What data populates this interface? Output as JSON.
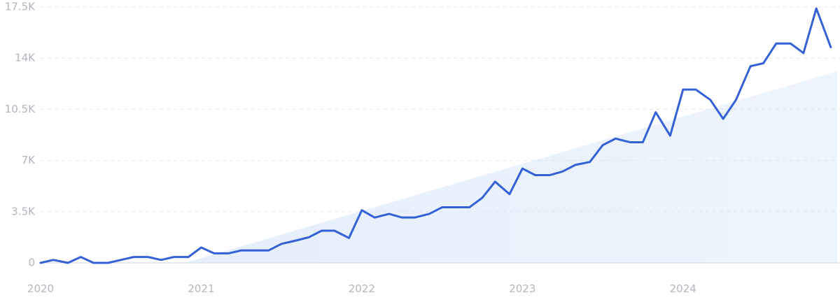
{
  "chart_data": {
    "type": "line",
    "title": "",
    "xlabel": "",
    "ylabel": "",
    "x_ticks": [
      "2020",
      "2021",
      "2022",
      "2023",
      "2024"
    ],
    "x_tick_values": [
      2020,
      2021,
      2022,
      2023,
      2024
    ],
    "y_ticks": [
      "0",
      "3.5K",
      "7K",
      "10.5K",
      "14K",
      "17.5K"
    ],
    "y_tick_values": [
      0,
      3500,
      7000,
      10500,
      14000,
      17500
    ],
    "ylim": [
      0,
      17500
    ],
    "xlim": [
      2020,
      2024.96
    ],
    "grid": true,
    "line_color": "#3461d6",
    "trend_fill_color": "#cfe1f8",
    "trend": {
      "x": [
        2020.9,
        2024.96
      ],
      "y": [
        0,
        13100
      ]
    },
    "series": [
      {
        "x": [
          2020.0,
          2020.08,
          2020.17,
          2020.25,
          2020.33,
          2020.42,
          2020.5,
          2020.58,
          2020.67,
          2020.75,
          2020.83,
          2020.92,
          2021.0,
          2021.08,
          2021.17,
          2021.25,
          2021.33,
          2021.42,
          2021.5,
          2021.58,
          2021.67,
          2021.75,
          2021.83,
          2021.92,
          2022.0,
          2022.08,
          2022.17,
          2022.25,
          2022.33,
          2022.42,
          2022.5,
          2022.58,
          2022.67,
          2022.75,
          2022.83,
          2022.92,
          2023.0,
          2023.08,
          2023.17,
          2023.25,
          2023.33,
          2023.42,
          2023.5,
          2023.58,
          2023.67,
          2023.75,
          2023.83,
          2023.92,
          2024.0,
          2024.08,
          2024.17,
          2024.25,
          2024.33,
          2024.42,
          2024.5,
          2024.58,
          2024.67,
          2024.75,
          2024.83,
          2024.92
        ],
        "values": [
          0,
          200,
          0,
          400,
          0,
          0,
          200,
          400,
          400,
          200,
          400,
          400,
          1050,
          650,
          650,
          850,
          850,
          850,
          1300,
          1500,
          1750,
          2200,
          2200,
          1700,
          3600,
          3100,
          3350,
          3100,
          3100,
          3350,
          3800,
          3800,
          3800,
          4450,
          5550,
          4700,
          6450,
          6000,
          6000,
          6250,
          6700,
          6900,
          8050,
          8500,
          8250,
          8250,
          10300,
          8700,
          11850,
          11850,
          11150,
          9850,
          11150,
          13450,
          13650,
          15000,
          15000,
          14350,
          17400,
          14750
        ]
      }
    ]
  }
}
